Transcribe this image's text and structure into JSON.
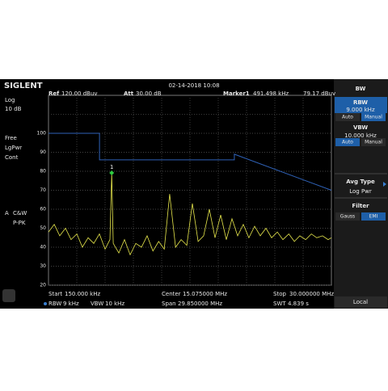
{
  "header": {
    "brand": "SIGLENT",
    "datetime": "02-14-2018 10:08",
    "ref": "Ref",
    "ref_value": "120.00 dBuv",
    "att": "Att",
    "att_value": "30.00 dB",
    "marker": "Marker1",
    "marker_freq": "491.498 kHz",
    "marker_level": "79.17 dBuv"
  },
  "left_panel": {
    "scale": "Log",
    "div": "10 dB",
    "trigger": "Free",
    "detector_mode": "LgPwr",
    "sweep": "Cont",
    "trace_flag": "A",
    "trace_mode": "C&W",
    "detector": "P-PK"
  },
  "footer": {
    "start": {
      "label": "Start",
      "value": "150.000 kHz"
    },
    "center": {
      "label": "Center",
      "value": "15.075000 MHz"
    },
    "stop": {
      "label": "Stop",
      "value": "30.000000 MHz"
    },
    "rbw": {
      "label": "RBW",
      "value": "9 kHz"
    },
    "vbw": {
      "label": "VBW",
      "value": "10 kHz"
    },
    "span": {
      "label": "Span",
      "value": "29.850000 MHz"
    },
    "swt": {
      "label": "SWT",
      "value": "4.839 s"
    }
  },
  "menu": {
    "title": "BW",
    "rbw": {
      "label": "RBW",
      "value": "9.000 kHz",
      "options": [
        "Auto",
        "Manual"
      ],
      "selected": 1
    },
    "vbw": {
      "label": "VBW",
      "value": "10.000 kHz",
      "options": [
        "Auto",
        "Manual"
      ],
      "selected": 0
    },
    "avg_type": {
      "label": "Avg Type",
      "value": "Log Pwr"
    },
    "filter": {
      "label": "Filter",
      "options": [
        "Gauss",
        "EMI"
      ],
      "selected": 1
    },
    "local": "Local"
  },
  "plot": {
    "type": "line",
    "xscale": "log",
    "xlim": [
      0.15,
      30
    ],
    "ylim": [
      20,
      120
    ],
    "yticks": [
      20,
      30,
      40,
      50,
      60,
      70,
      80,
      90,
      100
    ],
    "trace": {
      "color": "#e6e64c",
      "x": [
        0.15,
        0.167,
        0.185,
        0.206,
        0.229,
        0.255,
        0.283,
        0.315,
        0.35,
        0.389,
        0.433,
        0.474,
        0.49,
        0.504,
        0.56,
        0.622,
        0.692,
        0.769,
        0.855,
        0.951,
        1.06,
        1.18,
        1.31,
        1.45,
        1.62,
        1.8,
        2.0,
        2.22,
        2.47,
        2.74,
        3.05,
        3.39,
        3.77,
        4.19,
        4.66,
        5.18,
        5.76,
        6.4,
        7.12,
        7.92,
        8.8,
        9.79,
        10.9,
        12.1,
        13.5,
        15,
        16.6,
        18.5,
        20.6,
        22.8,
        25.4,
        28.2,
        30
      ],
      "values": [
        48,
        52,
        46,
        50,
        44,
        47,
        40,
        45,
        42,
        47,
        39,
        44,
        79.17,
        42,
        37,
        44,
        36,
        42,
        40,
        46,
        38,
        43,
        39,
        68,
        40,
        44,
        41,
        63,
        43,
        46,
        60,
        45,
        57,
        44,
        55,
        46,
        52,
        45,
        51,
        46,
        50,
        45,
        48,
        44,
        47,
        43,
        46,
        44,
        47,
        45,
        46,
        44,
        45
      ]
    },
    "limit_line": {
      "color": "#2f62b8",
      "x": [
        0.15,
        0.39,
        0.39,
        4.87,
        4.87,
        30
      ],
      "values": [
        100,
        100,
        86,
        86,
        89,
        70
      ]
    },
    "marker": {
      "label": "1",
      "point": 12,
      "color": "#2ecc40"
    }
  }
}
